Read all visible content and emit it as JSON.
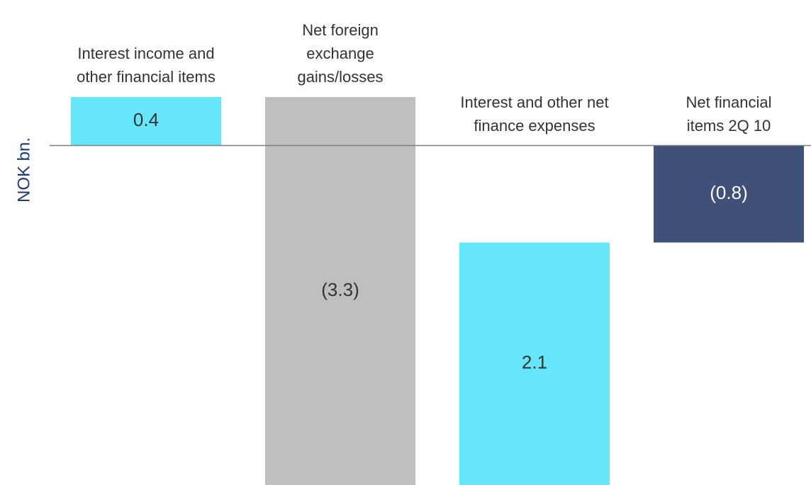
{
  "chart_data": {
    "type": "waterfall",
    "y_label": "NOK bn.",
    "categories": [
      "Interest income and other financial items",
      "Net foreign exchange gains/losses",
      "Interest and other net finance expenses",
      "Net financial items 2Q 10"
    ],
    "values": [
      0.4,
      -3.3,
      2.1,
      -0.8
    ],
    "value_labels": [
      "0.4",
      "(3.3)",
      "2.1",
      "(0.8)"
    ],
    "colors": [
      "#66e6fb",
      "#bfbfbf",
      "#66e6fb",
      "#3f5179"
    ],
    "ylim": [
      -2.8,
      1.2
    ]
  }
}
